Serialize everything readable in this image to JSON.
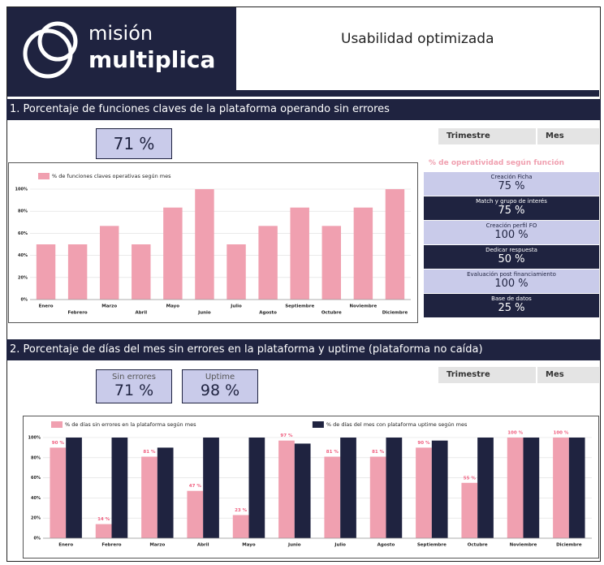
{
  "header": {
    "logo_top": "misión",
    "logo_bottom": "multiplica",
    "title": "Usabilidad optimizada"
  },
  "section1": {
    "title": "1. Porcentaje de funciones claves de la plataforma operando sin errores",
    "kpi": "71 %",
    "filters": [
      "Trimestre",
      "Mes"
    ]
  },
  "functions": {
    "title": "% de operatividad según función",
    "rows": [
      {
        "name": "Creación Ficha",
        "value": "75 %"
      },
      {
        "name": "Match y grupo de interés",
        "value": "75 %"
      },
      {
        "name": "Creación perfil FO",
        "value": "100 %"
      },
      {
        "name": "Dedicar respuesta",
        "value": "50 %"
      },
      {
        "name": "Evaluación post financiamiento",
        "value": "100 %"
      },
      {
        "name": "Base de datos",
        "value": "25 %"
      }
    ]
  },
  "section2": {
    "title": "2. Porcentaje de días del mes sin errores en la plataforma y uptime (plataforma no caída)",
    "kpis": [
      {
        "label": "Sin errores",
        "value": "71 %"
      },
      {
        "label": "Uptime",
        "value": "98 %"
      }
    ],
    "filters": [
      "Trimestre",
      "Mes"
    ]
  },
  "chart_data": [
    {
      "type": "bar",
      "categories": [
        "Enero",
        "Febrero",
        "Marzo",
        "Abril",
        "Mayo",
        "Junio",
        "Julio",
        "Agosto",
        "Septiembre",
        "Octubre",
        "Noviembre",
        "Diciembre"
      ],
      "series": [
        {
          "name": "% de funciones claves operativas según mes",
          "color": "#f0a0b0",
          "values": [
            50,
            50,
            66.67,
            50,
            83.33,
            100,
            50,
            66.67,
            83.33,
            66.67,
            83.33,
            100
          ],
          "value_labels": [
            "50 %",
            "50 %",
            "66,67 %",
            "50 %",
            "83,33 %",
            null,
            "50 %",
            "66,67 %",
            "83,33 %",
            "66,67 %",
            "83,33 %",
            null
          ]
        }
      ],
      "ylim": [
        0,
        100
      ],
      "yticks": [
        {
          "value": 0,
          "label": "0%"
        },
        {
          "value": 20,
          "label": "20%"
        },
        {
          "value": 40,
          "label": "40%"
        },
        {
          "value": 60,
          "label": "60%"
        },
        {
          "value": 80,
          "label": "80%"
        },
        {
          "value": 100,
          "label": "100%"
        }
      ],
      "grid": true
    },
    {
      "type": "bar",
      "categories": [
        "Enero",
        "Febrero",
        "Marzo",
        "Abril",
        "Mayo",
        "Junio",
        "Julio",
        "Agosto",
        "Septiembre",
        "Octubre",
        "Noviembre",
        "Diciembre"
      ],
      "series": [
        {
          "name": "% de días sin errores en la plataforma según mes",
          "color": "#f0a0b0",
          "values": [
            90,
            14,
            81,
            47,
            23,
            97,
            81,
            81,
            90,
            55,
            100,
            100
          ],
          "value_labels": [
            "90 %",
            "14 %",
            "81 %",
            "47 %",
            "23 %",
            "97 %",
            "81 %",
            "81 %",
            "90 %",
            "55 %",
            "100 %",
            "100 %"
          ]
        },
        {
          "name": "% de días del mes con plataforma uptime según mes",
          "color": "#1f2340",
          "values": [
            100,
            100,
            90,
            100,
            100,
            94,
            100,
            100,
            97,
            100,
            100,
            100
          ]
        }
      ],
      "ylim": [
        0,
        100
      ],
      "yticks": [
        {
          "value": 0,
          "label": "0%"
        },
        {
          "value": 20,
          "label": "20%"
        },
        {
          "value": 40,
          "label": "40%"
        },
        {
          "value": 60,
          "label": "60%"
        },
        {
          "value": 80,
          "label": "80%"
        },
        {
          "value": 100,
          "label": "100%"
        }
      ],
      "grid": true
    }
  ]
}
